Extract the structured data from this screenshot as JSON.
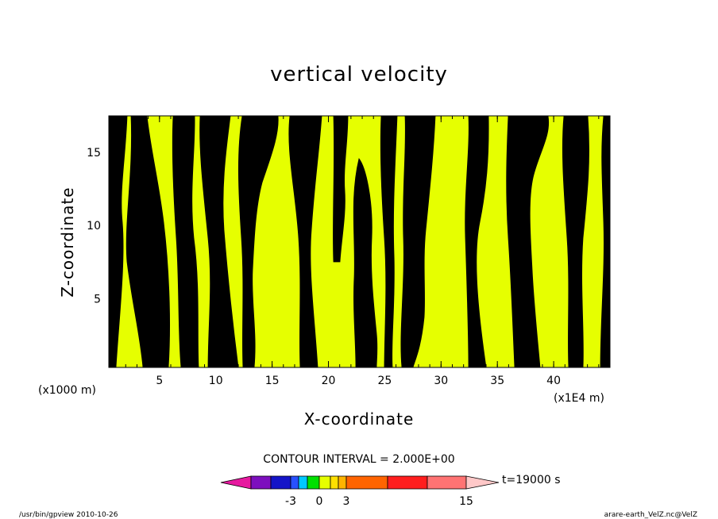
{
  "chart_data": {
    "type": "heatmap",
    "title": "vertical velocity",
    "xlabel": "X-coordinate",
    "ylabel": "Z-coordinate",
    "x_unit_left": "(x1000 m)",
    "x_unit_right": "(x1E4 m)",
    "xlim": [
      0.5,
      45
    ],
    "ylim": [
      0.3,
      17.5
    ],
    "x_ticks": [
      "5",
      "10",
      "15",
      "20",
      "25",
      "30",
      "35",
      "40"
    ],
    "x_tick_values": [
      5,
      10,
      15,
      20,
      25,
      30,
      35,
      40
    ],
    "y_ticks": [
      "5",
      "10",
      "15"
    ],
    "y_tick_values": [
      5,
      10,
      15
    ],
    "contour_interval_text": "CONTOUR INTERVAL = 2.000E+00",
    "colorbar": {
      "labels": [
        "-3",
        "0",
        "3",
        "15"
      ],
      "label_values": [
        -3,
        0,
        3,
        15
      ],
      "colors": [
        "#e6199f",
        "#7d0fbe",
        "#1414c8",
        "#2850ff",
        "#00c8ff",
        "#00e000",
        "#e6ff00",
        "#ffe000",
        "#ffb400",
        "#ff6400",
        "#ff1e1e",
        "#ff7373",
        "#ffc8c8"
      ]
    },
    "time_label": "t=19000 s",
    "field_colors": {
      "negative_small": "#00e000",
      "positive_small": "#e6ff00"
    },
    "grid": false
  },
  "footer": {
    "left": "/usr/bin/gpview  2010-10-26",
    "right": "arare-earth_VelZ.nc@VelZ"
  }
}
